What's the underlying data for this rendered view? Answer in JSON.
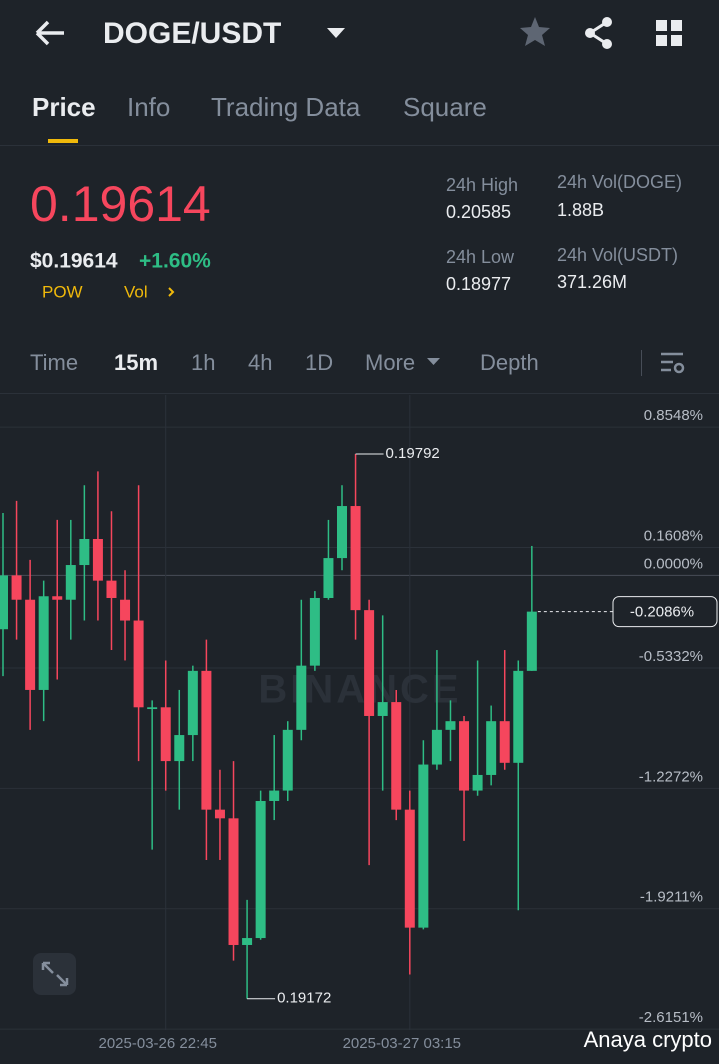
{
  "header": {
    "pair": "DOGE/USDT",
    "tabs": [
      "Price",
      "Info",
      "Trading Data",
      "Square"
    ]
  },
  "ticker": {
    "price": "0.19614",
    "usd_price": "$0.19614",
    "change": "+1.60%",
    "tags": [
      "POW",
      "Vol"
    ],
    "stats": [
      {
        "label": "24h High",
        "value": "0.20585"
      },
      {
        "label": "24h Vol(DOGE)",
        "value": "1.88B"
      },
      {
        "label": "24h Low",
        "value": "0.18977"
      },
      {
        "label": "24h Vol(USDT)",
        "value": "371.26M"
      }
    ]
  },
  "toolbar": [
    "Time",
    "15m",
    "1h",
    "4h",
    "1D",
    "More",
    "Depth"
  ],
  "chart_data": {
    "type": "candlestick",
    "watermark": "BINANCE",
    "credit": "Anaya crypto",
    "categories": [
      null,
      null,
      null,
      null,
      null,
      null,
      null,
      null,
      null,
      null,
      null,
      null,
      "2025-03-26 22:45",
      null,
      null,
      null,
      null,
      null,
      null,
      null,
      null,
      null,
      null,
      null,
      null,
      null,
      null,
      null,
      null,
      null,
      "2025-03-27 03:15",
      null,
      null,
      null,
      null,
      null,
      null,
      null,
      null,
      null
    ],
    "open": [
      -0.31,
      0,
      -0.14,
      -0.66,
      -0.12,
      -0.14,
      0.06,
      0.21,
      -0.03,
      -0.14,
      -0.26,
      -0.77,
      -0.76,
      -1.07,
      -0.92,
      -0.55,
      -1.35,
      -1.4,
      -2.13,
      -2.09,
      -1.3,
      -1.24,
      -0.89,
      -0.52,
      -0.13,
      0.1,
      0.4,
      -0.2,
      -0.81,
      -0.73,
      -1.35,
      -2.03,
      -1.09,
      -0.89,
      -0.84,
      -1.24,
      -1.15,
      -0.84,
      -1.08,
      -0.55
    ],
    "high": [
      0.36,
      0.43,
      0.09,
      -0.03,
      0.32,
      0.32,
      0.52,
      0.6,
      0.37,
      0.03,
      0.52,
      -0.72,
      -0.49,
      -0.66,
      -0.52,
      -0.37,
      -1.12,
      -1.07,
      -1.87,
      -1.24,
      -0.92,
      -0.84,
      -0.14,
      -0.09,
      0.32,
      0.52,
      0.7,
      -0.14,
      -0.23,
      -0.66,
      -1.24,
      -0.95,
      -0.43,
      -0.72,
      -0.81,
      -0.49,
      -0.75,
      -0.43,
      -0.49,
      0.17
    ],
    "low": [
      -0.58,
      -0.37,
      -0.89,
      -0.84,
      -0.6,
      -0.37,
      -0.26,
      -0.26,
      -0.43,
      -0.49,
      -1.07,
      -1.58,
      -1.24,
      -1.35,
      -1.07,
      -1.64,
      -1.64,
      -2.22,
      -2.44,
      -2.1,
      -1.41,
      -1.3,
      -0.95,
      -0.55,
      -0.14,
      0.03,
      -0.37,
      -1.67,
      -1.24,
      -1.41,
      -2.3,
      -2.04,
      -1.12,
      -1.07,
      -1.53,
      -1.27,
      -1.21,
      -1.12,
      -1.93,
      -0.55
    ],
    "close": [
      0,
      -0.14,
      -0.66,
      -0.12,
      -0.14,
      0.06,
      0.21,
      -0.03,
      -0.13,
      -0.26,
      -0.76,
      -0.76,
      -1.07,
      -0.92,
      -0.55,
      -1.35,
      -1.4,
      -2.13,
      -2.09,
      -1.3,
      -1.24,
      -0.89,
      -0.52,
      -0.13,
      0.1,
      0.4,
      -0.2,
      -0.81,
      -0.73,
      -1.35,
      -2.03,
      -1.09,
      -0.89,
      -0.84,
      -1.24,
      -1.15,
      -0.84,
      -1.08,
      -0.55,
      -0.2086
    ],
    "up_color": "#2ebd85",
    "down_color": "#f6465d",
    "ylim": [
      -2.62,
      1.04
    ],
    "yticks": [
      {
        "value": 0.8548,
        "label": "0.8548%"
      },
      {
        "value": 0.1608,
        "label": "0.1608%"
      },
      {
        "value": 0,
        "label": "0.0000%"
      },
      {
        "value": -0.5332,
        "label": "-0.5332%"
      },
      {
        "value": -1.2272,
        "label": "-1.2272%"
      },
      {
        "value": -1.9211,
        "label": "-1.9211%"
      },
      {
        "value": -2.6151,
        "label": "-2.6151%"
      }
    ],
    "high_label": "0.19792",
    "low_label": "0.19172",
    "current": {
      "value": -0.2086,
      "label": "-0.2086%"
    }
  }
}
